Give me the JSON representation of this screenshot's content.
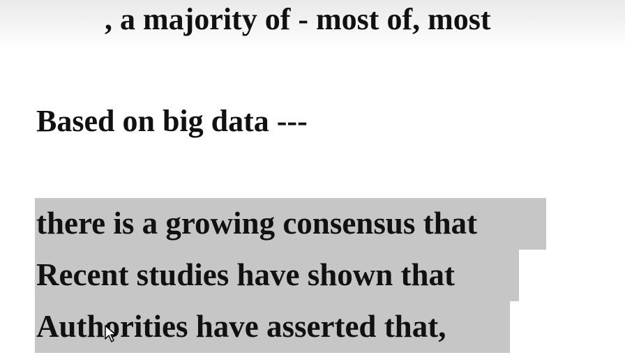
{
  "document": {
    "line_top": ", a majority of - most of, most",
    "heading": "Based on big data ---",
    "highlighted_lines": [
      "there is a growing consensus that",
      "Recent studies have shown that",
      "Authorities have asserted that,"
    ]
  },
  "colors": {
    "highlight": "#c6c6c6",
    "text": "#111111"
  },
  "icons": {
    "cursor": "mouse-pointer-icon"
  }
}
